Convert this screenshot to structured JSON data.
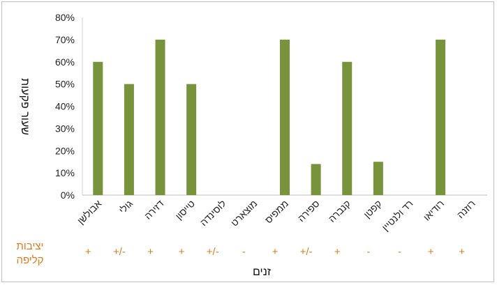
{
  "chart_data": {
    "type": "bar",
    "title": "",
    "ylabel": "שעור פקעות",
    "xlabel": "זנים",
    "ylim": [
      0,
      80
    ],
    "yticks": [
      "0%",
      "10%",
      "20%",
      "30%",
      "40%",
      "50%",
      "60%",
      "70%",
      "80%"
    ],
    "categories": [
      "אבולשן",
      "גולי",
      "דזירה",
      "טייסון",
      "לוסינדה",
      "מוצארט",
      "ממפיס",
      "ספירה",
      "קנברה",
      "קפטן",
      "רד ולנטיין",
      "רודיאו",
      "רוזנה"
    ],
    "values": [
      60,
      50,
      70,
      50,
      0,
      0,
      70,
      14,
      60,
      15,
      0,
      70,
      0
    ],
    "bar_color": "#77933c",
    "grid": false,
    "legend": "none"
  },
  "peel_stability": {
    "label": "יציבות קליפה",
    "marks": [
      "+",
      "+/-",
      "+",
      "+",
      "+/-",
      "-",
      "+",
      "+/-",
      "+",
      "-",
      "-",
      "+",
      "+"
    ],
    "color": "#e07b1f"
  }
}
